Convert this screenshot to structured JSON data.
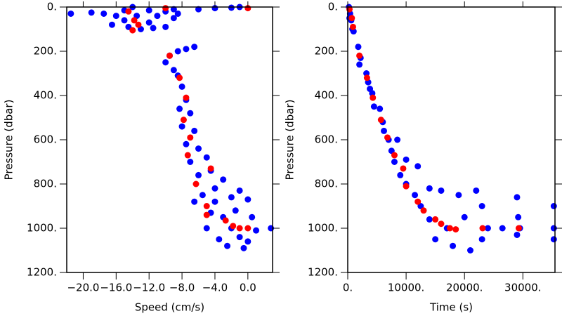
{
  "chart_data": [
    {
      "type": "scatter",
      "x_label": "Speed (cm/s)",
      "y_label": "Pressure (dbar)",
      "xlim": [
        -22,
        3
      ],
      "ylim": [
        1200,
        0
      ],
      "y_inverted": true,
      "xticks": [
        {
          "value": -20,
          "label": "−20.0"
        },
        {
          "value": -16,
          "label": "−16.0"
        },
        {
          "value": -12,
          "label": "−12.0"
        },
        {
          "value": -8,
          "label": "−8.0"
        },
        {
          "value": -4,
          "label": "−4.0"
        },
        {
          "value": 0,
          "label": "0.0"
        }
      ],
      "yticks": [
        {
          "value": 0,
          "label": "0."
        },
        {
          "value": 200,
          "label": "200."
        },
        {
          "value": 400,
          "label": "400."
        },
        {
          "value": 600,
          "label": "600."
        },
        {
          "value": 800,
          "label": "800."
        },
        {
          "value": 1000,
          "label": "1000."
        },
        {
          "value": 1200,
          "label": "1200."
        }
      ],
      "series": [
        {
          "color": "#0000ff",
          "x": [
            -21.5,
            -19,
            -17.5,
            -16,
            -15,
            -14.5,
            -13,
            -12,
            -11,
            -10,
            -9,
            -8.5,
            -12,
            -15,
            -16.5,
            -11.5,
            -10,
            -13.5,
            -6,
            -4,
            -2,
            -1,
            -9,
            -14,
            -9.5,
            -8.5,
            -7.5,
            -6.5,
            -10,
            -9,
            -8.5,
            -8,
            -7.5,
            -8.3,
            -7,
            -8,
            -6.5,
            -7.5,
            -6,
            -7,
            -5,
            -6,
            -4.5,
            -3,
            -5.5,
            -4,
            -2,
            -1,
            0,
            -6.5,
            -4.5,
            -3,
            -2,
            -1,
            0,
            1,
            2.8,
            -0.5,
            -3.5,
            -5,
            -1.5,
            0.5,
            -2.5,
            -4
          ],
          "y": [
            30,
            25,
            30,
            40,
            60,
            90,
            100,
            70,
            40,
            20,
            50,
            30,
            15,
            15,
            80,
            95,
            90,
            40,
            10,
            5,
            3,
            0,
            10,
            0,
            220,
            200,
            190,
            180,
            250,
            285,
            310,
            360,
            420,
            460,
            480,
            540,
            560,
            620,
            640,
            700,
            680,
            760,
            740,
            780,
            850,
            820,
            860,
            830,
            870,
            880,
            930,
            950,
            1000,
            1040,
            1060,
            1010,
            1000,
            1090,
            1050,
            1000,
            920,
            950,
            1080,
            880
          ]
        },
        {
          "color": "#ff0000",
          "x": [
            -14.5,
            -13.8,
            -13.3,
            -14,
            -10,
            0,
            -9.5,
            -8.3,
            -7.5,
            -7.8,
            -7,
            -7.3,
            -4.5,
            -6.3,
            -5,
            -5,
            -2.7,
            -1.8,
            -1,
            0
          ],
          "y": [
            20,
            60,
            80,
            105,
            5,
            5,
            220,
            320,
            410,
            510,
            590,
            670,
            730,
            800,
            900,
            940,
            965,
            990,
            1000,
            1000
          ]
        }
      ]
    },
    {
      "type": "scatter",
      "x_label": "Time (s)",
      "y_label": "Pressure (dbar)",
      "xlim": [
        0,
        35500
      ],
      "ylim": [
        1200,
        0
      ],
      "y_inverted": true,
      "xticks": [
        {
          "value": 0,
          "label": "0."
        },
        {
          "value": 10000,
          "label": "10000."
        },
        {
          "value": 20000,
          "label": "20000."
        },
        {
          "value": 30000,
          "label": "30000."
        }
      ],
      "yticks": [
        {
          "value": 0,
          "label": "0."
        },
        {
          "value": 200,
          "label": "200."
        },
        {
          "value": 400,
          "label": "400."
        },
        {
          "value": 600,
          "label": "600."
        },
        {
          "value": 800,
          "label": "800."
        },
        {
          "value": 1000,
          "label": "1000."
        },
        {
          "value": 1200,
          "label": "1200."
        }
      ],
      "series": [
        {
          "color": "#0000ff",
          "x": [
            200,
            400,
            600,
            800,
            1000,
            300,
            1800,
            2200,
            2000,
            3200,
            3500,
            3800,
            4200,
            4500,
            5500,
            6000,
            6200,
            7000,
            7500,
            8000,
            8500,
            9000,
            10000,
            10000,
            11500,
            12000,
            12500,
            14000,
            14000,
            15000,
            16000,
            17000,
            18000,
            19000,
            20000,
            21000,
            22000,
            23000,
            23000,
            24000,
            26500,
            29000,
            29200,
            29500,
            29000,
            35300,
            35300,
            35300
          ],
          "y": [
            0,
            30,
            60,
            100,
            110,
            50,
            180,
            230,
            260,
            300,
            340,
            370,
            390,
            450,
            460,
            520,
            560,
            600,
            650,
            700,
            600,
            760,
            690,
            800,
            850,
            720,
            900,
            820,
            960,
            1050,
            830,
            1000,
            1080,
            850,
            950,
            1100,
            830,
            900,
            1050,
            1000,
            1000,
            860,
            950,
            1000,
            1030,
            900,
            1000,
            1050
          ]
        },
        {
          "color": "#ff0000",
          "x": [
            300,
            700,
            900,
            2000,
            3300,
            4300,
            5700,
            6800,
            8000,
            9500,
            10000,
            12000,
            13000,
            15000,
            16000,
            17500,
            18500,
            23100,
            29300
          ],
          "y": [
            10,
            50,
            90,
            220,
            320,
            410,
            510,
            590,
            670,
            730,
            810,
            880,
            920,
            960,
            980,
            1000,
            1005,
            1000,
            1000
          ]
        }
      ]
    }
  ]
}
